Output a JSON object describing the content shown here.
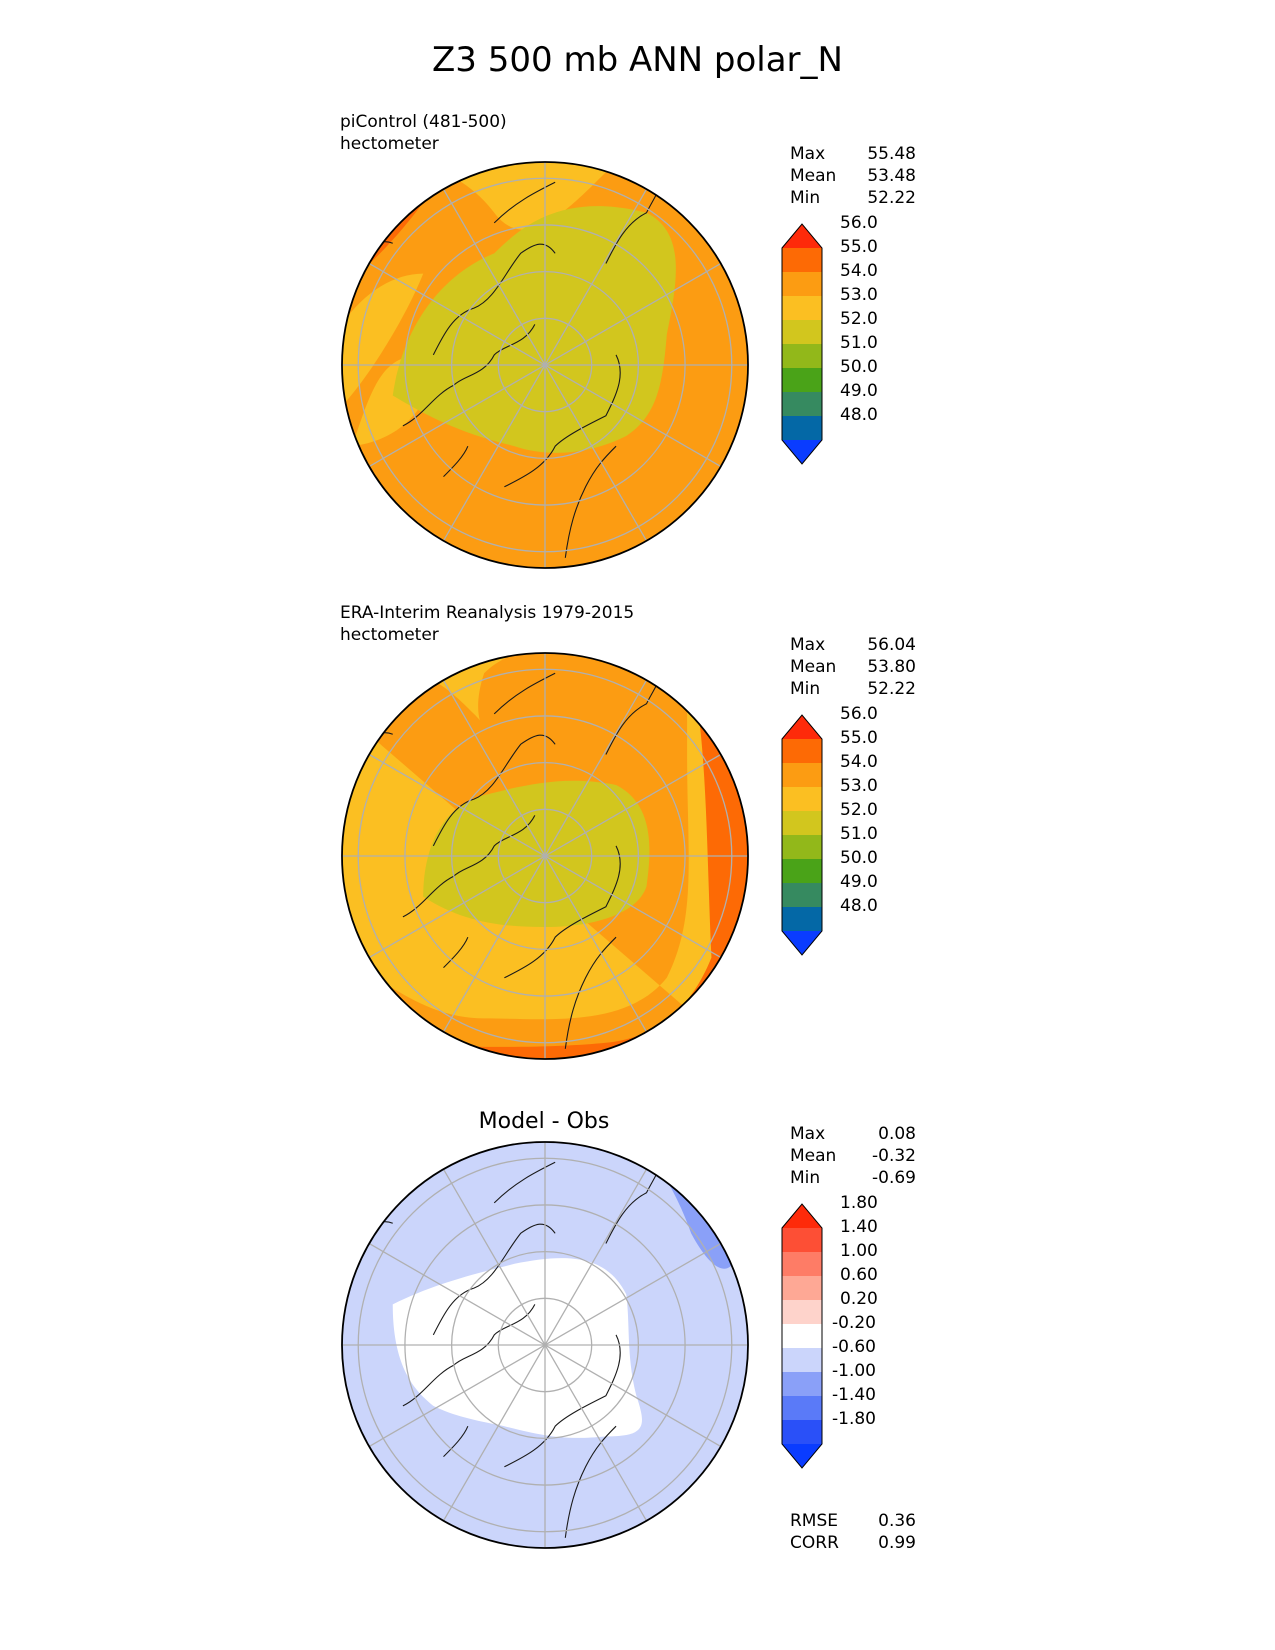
{
  "title": "Z3 500 mb ANN polar_N",
  "panels": [
    {
      "id": "test",
      "title_lines": [
        "piControl (481-500)",
        "hectometer"
      ],
      "stats": [
        {
          "label": "Max",
          "value": "55.48"
        },
        {
          "label": "Mean",
          "value": "53.48"
        },
        {
          "label": "Min",
          "value": "52.22"
        }
      ],
      "colorbar": {
        "colors": [
          "#0a3cff",
          "#0468a6",
          "#368a60",
          "#4aa318",
          "#92b81a",
          "#d2c61e",
          "#fbbf22",
          "#fc9c12",
          "#fd6a05",
          "#fe2a0a"
        ],
        "labels": [
          "48.0",
          "49.0",
          "50.0",
          "51.0",
          "52.0",
          "53.0",
          "54.0",
          "55.0",
          "56.0"
        ]
      }
    },
    {
      "id": "reference",
      "title_lines": [
        "ERA-Interim Reanalysis 1979-2015",
        "hectometer"
      ],
      "stats": [
        {
          "label": "Max",
          "value": "56.04"
        },
        {
          "label": "Mean",
          "value": "53.80"
        },
        {
          "label": "Min",
          "value": "52.22"
        }
      ],
      "colorbar": {
        "colors": [
          "#0a3cff",
          "#0468a6",
          "#368a60",
          "#4aa318",
          "#92b81a",
          "#d2c61e",
          "#fbbf22",
          "#fc9c12",
          "#fd6a05",
          "#fe2a0a"
        ],
        "labels": [
          "48.0",
          "49.0",
          "50.0",
          "51.0",
          "52.0",
          "53.0",
          "54.0",
          "55.0",
          "56.0"
        ]
      }
    },
    {
      "id": "diff",
      "title": "Model - Obs",
      "stats": [
        {
          "label": "Max",
          "value": "0.08"
        },
        {
          "label": "Mean",
          "value": "-0.32"
        },
        {
          "label": "Min",
          "value": "-0.69"
        }
      ],
      "colorbar": {
        "colors": [
          "#0a3cff",
          "#2a50f8",
          "#5a7af8",
          "#8aa0f8",
          "#cbd5fb",
          "#ffffff",
          "#fed3cb",
          "#fea895",
          "#fe7c66",
          "#fd4f35",
          "#fe2a0a"
        ],
        "labels": [
          "-1.80",
          "-1.40",
          "-1.00",
          "-0.60",
          "-0.20",
          "0.20",
          "0.60",
          "1.00",
          "1.40",
          "1.80"
        ]
      },
      "metrics": [
        {
          "label": "RMSE",
          "value": "0.36"
        },
        {
          "label": "CORR",
          "value": "0.99"
        }
      ]
    }
  ]
}
